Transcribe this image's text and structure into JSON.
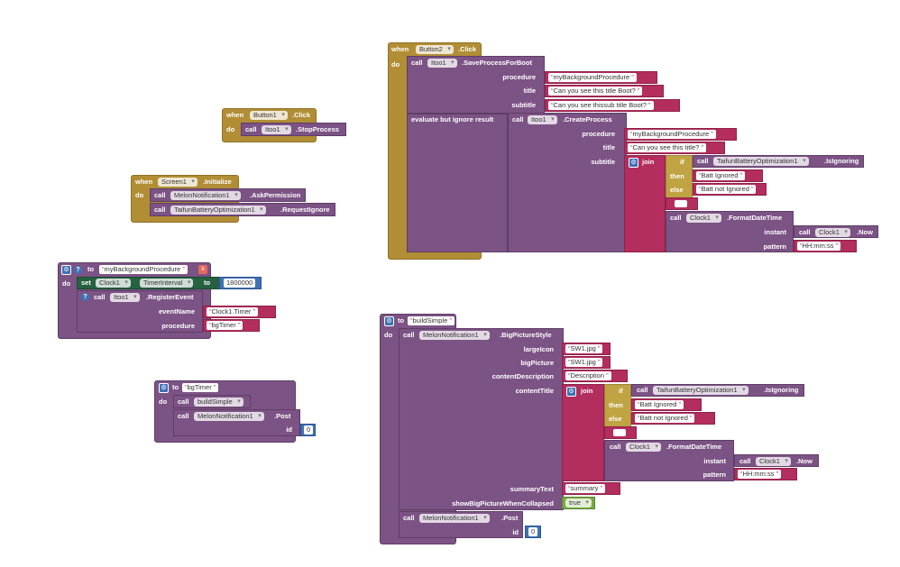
{
  "btn2": {
    "when": "when",
    "comp": "Button2",
    "event": ".Click",
    "do": "do",
    "call1": {
      "call": "call",
      "comp": "Itoo1",
      "method": ".SaveProcessForBoot",
      "arg_procedure": "procedure",
      "val_procedure": "myBackgroundProcedure",
      "arg_title": "title",
      "val_title": "Can you see this title Boot?",
      "arg_subtitle": "subtitle",
      "val_subtitle": "Can you see thissub title Boot?"
    },
    "evaluate": "evaluate but ignore result",
    "call2": {
      "call": "call",
      "comp": "Itoo1",
      "method": ".CreateProcess",
      "arg_procedure": "procedure",
      "val_procedure": "myBackgroundProcedure",
      "arg_title": "title",
      "val_title": "Can you see this title?",
      "arg_subtitle": "subtitle"
    },
    "join": "join",
    "if": "if",
    "then": "then",
    "else": "else",
    "ign_call": "call",
    "ign_comp": "TaifunBatteryOptimization1",
    "ign_method": ".IsIgnoring",
    "then_val": "Batt Ignored",
    "else_val": "Batt not Ignored",
    "fmt_call": "call",
    "fmt_comp": "Clock1",
    "fmt_method": ".FormatDateTime",
    "instant": "instant",
    "now_call": "call",
    "now_comp": "Clock1",
    "now_method": ".Now",
    "pattern": "pattern",
    "pattern_val": "HH:mm:ss"
  },
  "btn1": {
    "when": "when",
    "comp": "Button1",
    "event": ".Click",
    "do": "do",
    "call": "call",
    "call_comp": "Itoo1",
    "method": ".StopProcess"
  },
  "screen1": {
    "when": "when",
    "comp": "Screen1",
    "event": ".Initialize",
    "do": "do",
    "call1": "call",
    "comp1": "MelonNotification1",
    "method1": ".AskPermission",
    "call2": "call",
    "comp2": "TaifunBatteryOptimization1",
    "method2": ".RequestIgnore"
  },
  "mybg": {
    "to": "to",
    "name": "myBackgroundProcedure",
    "x": "x",
    "do": "do",
    "set": "set",
    "set_comp": "Clock1",
    "set_prop": "TimerInterval",
    "set_to": "to",
    "interval": "1800000",
    "call": "call",
    "call_comp": "Itoo1",
    "method": ".RegisterEvent",
    "arg_event": "eventName",
    "val_event": "Clock1.Timer",
    "arg_proc": "procedure",
    "val_proc": "bgTimer"
  },
  "bgtimer": {
    "to": "to",
    "name": "bgTimer",
    "do": "do",
    "call1": "call",
    "proc1": "buildSimple",
    "call2": "call",
    "comp2": "MelonNotification1",
    "method2": ".Post",
    "arg_id": "id",
    "val_id": "0"
  },
  "build": {
    "to": "to",
    "name": "buildSimple",
    "do": "do",
    "call": "call",
    "comp": "MelonNotification1",
    "method": ".BigPictureStyle",
    "largeIcon": "largeIcon",
    "largeIcon_val": "SW1.jpg",
    "bigPicture": "bigPicture",
    "bigPicture_val": "SW1.jpg",
    "contentDescription": "contentDescription",
    "contentDescription_val": "Description",
    "contentTitle": "contentTitle",
    "join": "join",
    "if": "if",
    "then": "then",
    "else": "else",
    "ign_call": "call",
    "ign_comp": "TaifunBatteryOptimization1",
    "ign_method": ".IsIgnoring",
    "then_val": "Batt Ignored",
    "else_val": "Batt not Ignored",
    "fmt_call": "call",
    "fmt_comp": "Clock1",
    "fmt_method": ".FormatDateTime",
    "instant": "instant",
    "now_call": "call",
    "now_comp": "Clock1",
    "now_method": ".Now",
    "pattern": "pattern",
    "pattern_val": "HH:mm:ss",
    "summaryText": "summaryText",
    "summaryText_val": "summary",
    "showBig": "showBigPictureWhenCollapsed",
    "showBig_val": "true",
    "post_call": "call",
    "post_comp": "MelonNotification1",
    "post_method": ".Post",
    "arg_id": "id",
    "val_id": "0"
  },
  "colors": {
    "event": "#b18e35",
    "procedure": "#7c5385",
    "text": "#b32d5e",
    "control": "#c0a343",
    "setter": "#266141",
    "number": "#3f71b5",
    "logic": "#77ab41"
  }
}
